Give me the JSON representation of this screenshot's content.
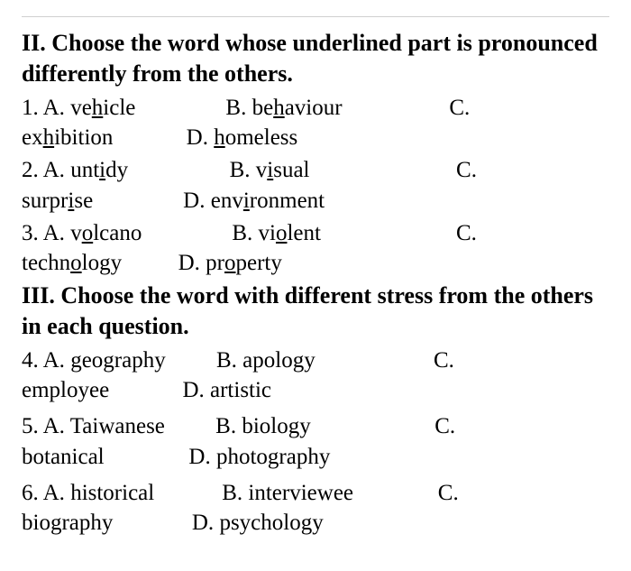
{
  "section2": {
    "heading": "II. Choose the word whose underlined part is pronounced differently from the others.",
    "q1": {
      "num": "1.",
      "A_label": "A.",
      "A_pre": "ve",
      "A_u": "h",
      "A_post": "icle",
      "B_label": "B.",
      "B_pre": "be",
      "B_u": "h",
      "B_post": "aviour",
      "C_label": "C.",
      "C_pre": "ex",
      "C_u": "h",
      "C_post": "ibition",
      "D_label": "D.",
      "D_pre": "",
      "D_u": "h",
      "D_post": "omeless"
    },
    "q2": {
      "num": "2.",
      "A_label": "A.",
      "A_pre": "unt",
      "A_u": "i",
      "A_post": "dy",
      "B_label": "B.",
      "B_pre": "v",
      "B_u": "i",
      "B_post": "sual",
      "C_label": "C.",
      "C_pre": "surpr",
      "C_u": "i",
      "C_post": "se",
      "D_label": "D.",
      "D_pre": "env",
      "D_u": "i",
      "D_post": "ronment"
    },
    "q3": {
      "num": "3.",
      "A_label": "A.",
      "A_pre": "v",
      "A_u": "o",
      "A_post": "lcano",
      "B_label": "B.",
      "B_pre": "vi",
      "B_u": "o",
      "B_post": "lent",
      "C_label": "C.",
      "C_pre": "techn",
      "C_u": "o",
      "C_post": "logy",
      "D_label": "D.",
      "D_pre": "pr",
      "D_u": "o",
      "D_post": "perty"
    }
  },
  "section3": {
    "heading": "III. Choose the word with different stress from the others in each question.",
    "q4": {
      "num": "4.",
      "A_label": "A.",
      "A_word": "geography",
      "B_label": "B.",
      "B_word": "apology",
      "C_label": "C.",
      "C_word": "employee",
      "D_label": "D.",
      "D_word": "artistic"
    },
    "q5": {
      "num": "5.",
      "A_label": "A.",
      "A_word": "Taiwanese",
      "B_label": "B.",
      "B_word": "biology",
      "C_label": "C.",
      "C_word": "botanical",
      "D_label": "D.",
      "D_word": "photography"
    },
    "q6": {
      "num": "6.",
      "A_label": "A.",
      "A_word": "historical",
      "B_label": "B.",
      "B_word": "interviewee",
      "C_label": "C.",
      "C_word": "biography",
      "D_label": "D.",
      "D_word": "psychology"
    }
  },
  "colors": {
    "text": "#000000",
    "background": "#ffffff",
    "border": "#d0d0d0"
  },
  "typography": {
    "heading_fontsize": 26,
    "body_fontsize": 25,
    "font_family": "Times New Roman"
  }
}
